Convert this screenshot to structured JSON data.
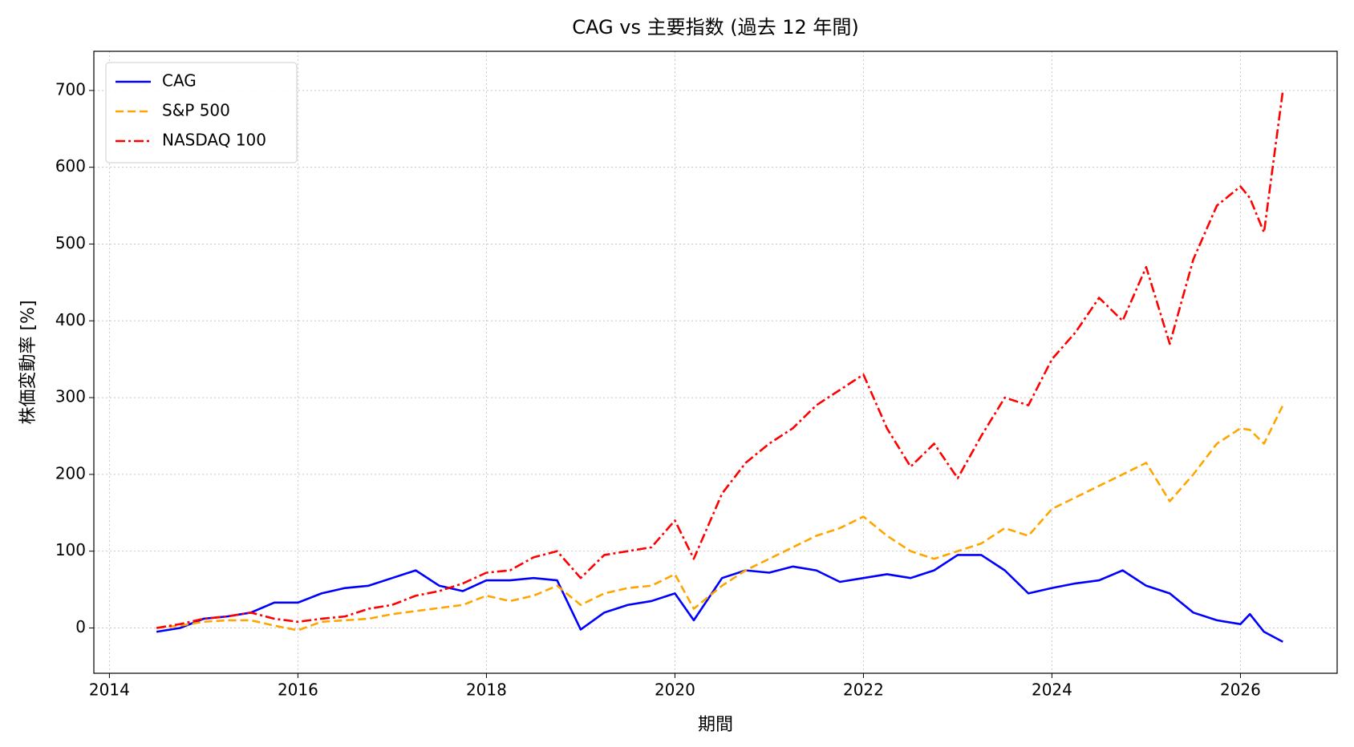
{
  "chart_data": {
    "type": "line",
    "title": "CAG vs 主要指数 (過去 12 年間)",
    "xlabel": "期間",
    "ylabel": "株価変動率 [%]",
    "x": [
      2014.5,
      2014.75,
      2015.0,
      2015.25,
      2015.5,
      2015.75,
      2016.0,
      2016.25,
      2016.5,
      2016.75,
      2017.0,
      2017.25,
      2017.5,
      2017.75,
      2018.0,
      2018.25,
      2018.5,
      2018.75,
      2019.0,
      2019.25,
      2019.5,
      2019.75,
      2020.0,
      2020.2,
      2020.5,
      2020.75,
      2021.0,
      2021.25,
      2021.5,
      2021.75,
      2022.0,
      2022.25,
      2022.5,
      2022.75,
      2023.0,
      2023.25,
      2023.5,
      2023.75,
      2024.0,
      2024.25,
      2024.5,
      2024.75,
      2025.0,
      2025.25,
      2025.5,
      2025.75,
      2026.0,
      2026.1,
      2026.25,
      2026.45
    ],
    "series": [
      {
        "name": "CAG",
        "color": "#0000ff",
        "linestyle": "solid",
        "values": [
          -5,
          0,
          12,
          15,
          20,
          33,
          33,
          45,
          52,
          55,
          65,
          75,
          55,
          48,
          62,
          62,
          65,
          62,
          -2,
          20,
          30,
          35,
          45,
          10,
          65,
          75,
          72,
          80,
          75,
          60,
          65,
          70,
          65,
          75,
          95,
          95,
          75,
          45,
          52,
          58,
          62,
          75,
          55,
          45,
          20,
          10,
          5,
          18,
          -5,
          -18
        ]
      },
      {
        "name": "S&P 500",
        "color": "#ffa500",
        "linestyle": "dashed",
        "values": [
          0,
          3,
          8,
          10,
          10,
          3,
          -3,
          8,
          10,
          12,
          18,
          22,
          26,
          30,
          42,
          35,
          42,
          55,
          30,
          45,
          52,
          55,
          70,
          25,
          55,
          75,
          90,
          105,
          120,
          130,
          145,
          120,
          100,
          90,
          100,
          110,
          130,
          120,
          155,
          170,
          185,
          200,
          215,
          165,
          200,
          240,
          260,
          258,
          240,
          290
        ]
      },
      {
        "name": "NASDAQ 100",
        "color": "#ff0000",
        "linestyle": "dashdot",
        "values": [
          0,
          5,
          12,
          15,
          20,
          12,
          8,
          12,
          15,
          25,
          30,
          42,
          48,
          58,
          72,
          75,
          92,
          100,
          65,
          95,
          100,
          105,
          140,
          90,
          175,
          215,
          240,
          260,
          290,
          310,
          330,
          260,
          210,
          240,
          195,
          250,
          300,
          290,
          350,
          385,
          430,
          400,
          470,
          370,
          480,
          550,
          575,
          560,
          515,
          700
        ]
      }
    ],
    "xlim": [
      2013.835,
      2027.026
    ],
    "xticks": [
      2014,
      2016,
      2018,
      2020,
      2022,
      2024,
      2026
    ],
    "ylim": [
      -59,
      751
    ],
    "yticks": [
      0,
      100,
      200,
      300,
      400,
      500,
      600,
      700
    ],
    "grid": true,
    "legend": "upper left"
  }
}
